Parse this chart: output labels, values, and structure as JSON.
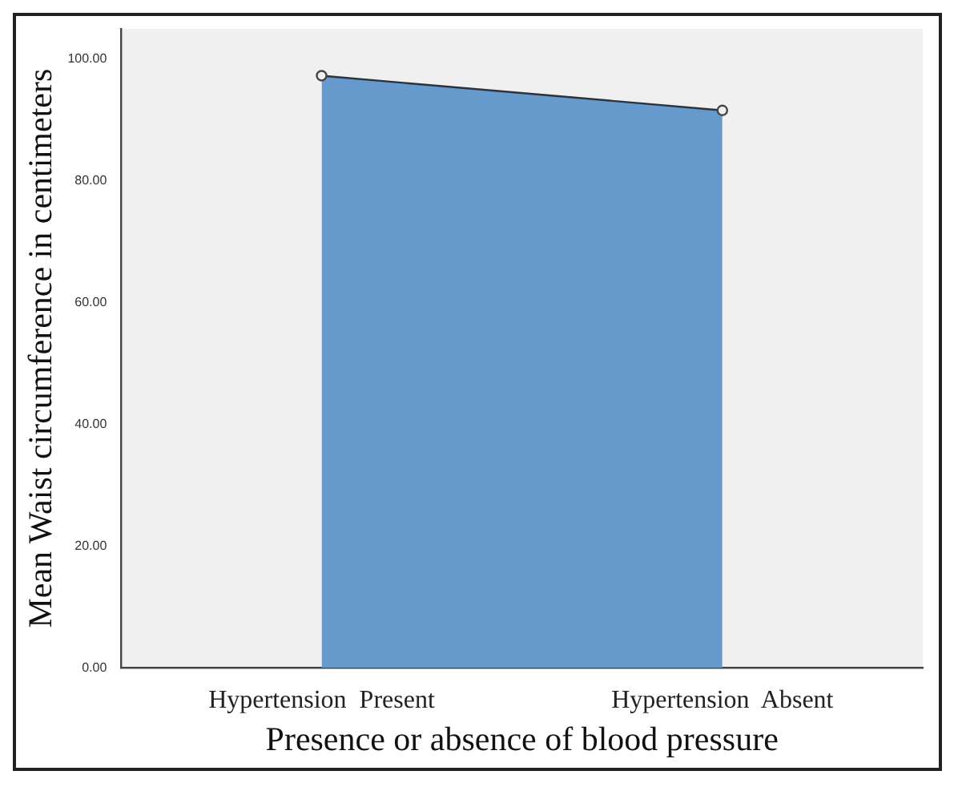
{
  "chart_data": {
    "type": "area",
    "xlabel": "Presence or absence of blood pressure",
    "ylabel": "Mean Waist circumference in centimeters",
    "categories": [
      "Hypertension  Present",
      "Hypertension  Absent"
    ],
    "series": [
      {
        "color": "#6699cc",
        "values": [
          97.3,
          91.6
        ]
      }
    ],
    "ylim": [
      0,
      105
    ],
    "yticks": [
      {
        "value": 0,
        "label": "0.00"
      },
      {
        "value": 20,
        "label": "20.00"
      },
      {
        "value": 40,
        "label": "40.00"
      },
      {
        "value": 60,
        "label": "60.00"
      },
      {
        "value": 80,
        "label": "80.00"
      },
      {
        "value": 100,
        "label": "100.00"
      }
    ],
    "grid": false,
    "legend": false,
    "marker": "circle"
  }
}
